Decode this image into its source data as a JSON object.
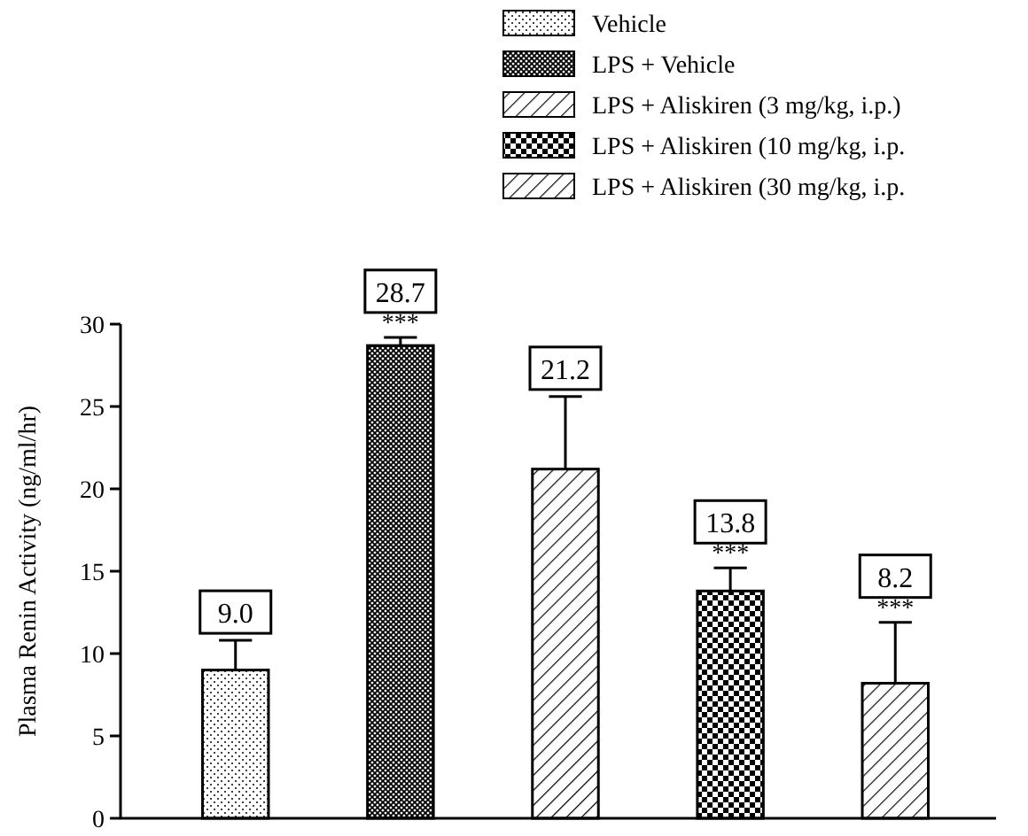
{
  "chart_data": {
    "type": "bar",
    "ylabel": "Plasma Renin Activity (ng/ml/hr)",
    "categories": [
      null
    ],
    "series": [
      {
        "name": "Vehicle",
        "color": "#000000",
        "values": [
          9.0
        ],
        "errors": [
          [
            9.0,
            10.8
          ]
        ],
        "value_labels": [
          "9.0"
        ]
      },
      {
        "name": "LPS + Vehicle",
        "color": "#000000",
        "values": [
          28.7
        ],
        "errors": [
          [
            28.7,
            29.2
          ]
        ],
        "value_labels": [
          "28.7"
        ]
      },
      {
        "name": "LPS + Aliskiren (3 mg/kg, i.p.)",
        "color": "#000000",
        "values": [
          21.2
        ],
        "errors": [
          [
            21.2,
            25.6
          ]
        ],
        "value_labels": [
          "21.2"
        ]
      },
      {
        "name": "LPS + Aliskiren (10 mg/kg, i.p.",
        "color": "#000000",
        "values": [
          13.8
        ],
        "errors": [
          [
            13.8,
            15.2
          ]
        ],
        "value_labels": [
          "13.8"
        ]
      },
      {
        "name": "LPS + Aliskiren (30 mg/kg, i.p.",
        "color": "#000000",
        "values": [
          8.2
        ],
        "errors": [
          [
            8.2,
            11.9
          ]
        ],
        "value_labels": [
          "8.2"
        ]
      }
    ],
    "annotations": [
      {
        "text": "***",
        "y": 29.2
      },
      {
        "text": "***",
        "y": 15.2
      },
      {
        "text": "***",
        "y": 11.9
      }
    ],
    "ylim": [
      0,
      30
    ],
    "yticks": [
      0,
      5,
      10,
      15,
      20,
      25,
      30
    ],
    "tick_labels": "y",
    "legend": "top right"
  }
}
